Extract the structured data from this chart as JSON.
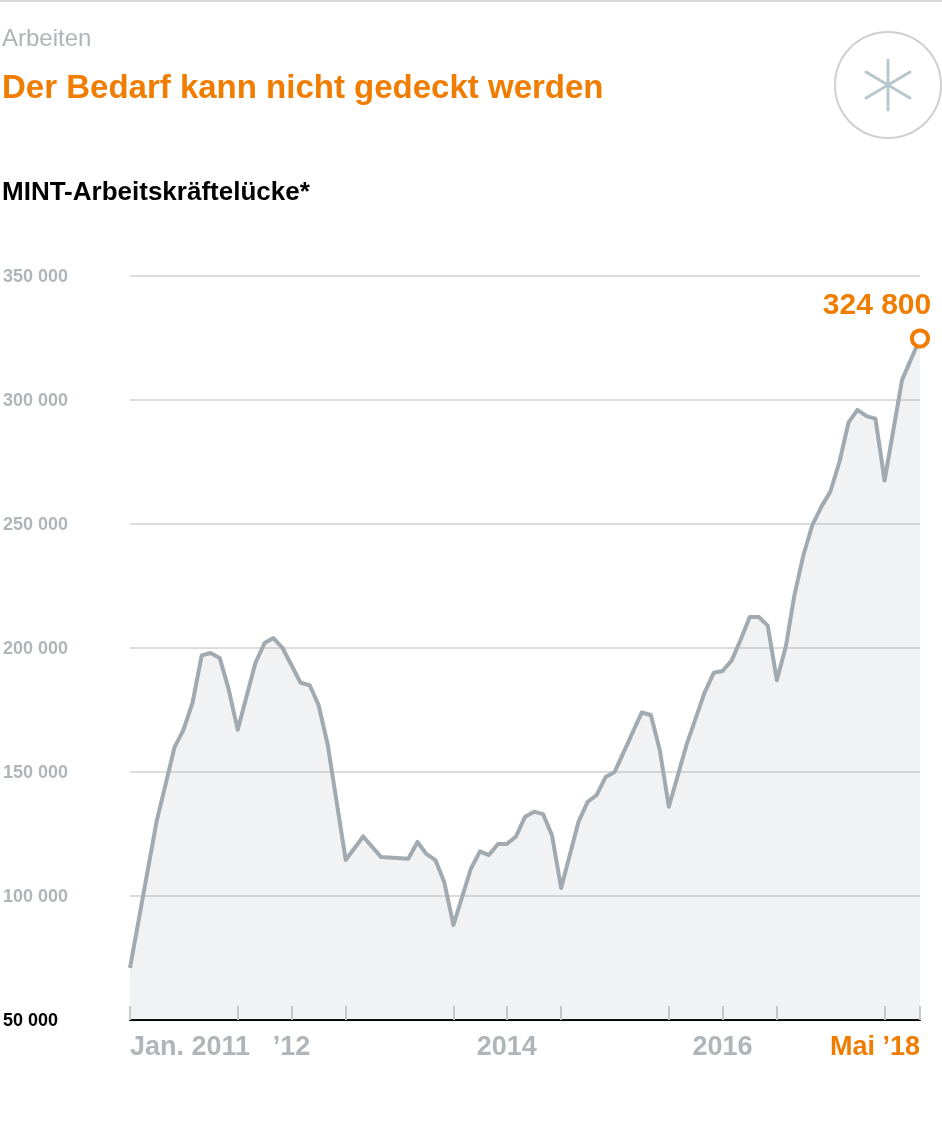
{
  "chart_data": {
    "type": "area",
    "annotations": [
      "Arbeiten",
      {
        "text": "324 800",
        "x": "2018-05",
        "y": 324800
      }
    ],
    "title": "Der Bedarf kann nicht gedeckt werden",
    "ylabel": "MINT-Arbeitskräftelücke*",
    "series": [
      {
        "color": "#a0aab0",
        "x": [
          "2011-01",
          "2011-04",
          "2011-06",
          "2011-07",
          "2011-08",
          "2011-09",
          "2011-10",
          "2011-11",
          "2011-12",
          "2012-01",
          "2012-03",
          "2012-04",
          "2012-05",
          "2012-06",
          "2012-08",
          "2012-09",
          "2012-10",
          "2012-11",
          "2013-01",
          "2013-03",
          "2013-05",
          "2013-08",
          "2013-09",
          "2013-10",
          "2013-11",
          "2013-12",
          "2014-01",
          "2014-03",
          "2014-04",
          "2014-05",
          "2014-06",
          "2014-07",
          "2014-08",
          "2014-09",
          "2014-10",
          "2014-11",
          "2014-12",
          "2015-01",
          "2015-03",
          "2015-04",
          "2015-05",
          "2015-06",
          "2015-07",
          "2015-08",
          "2015-10",
          "2015-11",
          "2015-12",
          "2016-01",
          "2016-03",
          "2016-05",
          "2016-06",
          "2016-07",
          "2016-08",
          "2016-09",
          "2016-10",
          "2016-11",
          "2016-12",
          "2017-01",
          "2017-02",
          "2017-03",
          "2017-04",
          "2017-05",
          "2017-06",
          "2017-07",
          "2017-08",
          "2017-09",
          "2017-10",
          "2017-11",
          "2017-12",
          "2018-01",
          "2018-03",
          "2018-05"
        ],
        "values": [
          71000,
          130000,
          160000,
          167000,
          178000,
          197000,
          198000,
          196000,
          183500,
          167000,
          194000,
          202000,
          204000,
          200000,
          186000,
          185000,
          177000,
          161000,
          114500,
          124000,
          115700,
          115000,
          121800,
          117000,
          114500,
          105500,
          88300,
          111000,
          118000,
          116500,
          121000,
          121000,
          124000,
          132000,
          134000,
          133000,
          124500,
          103200,
          130000,
          138000,
          140700,
          148000,
          150000,
          158000,
          174000,
          173000,
          159000,
          136000,
          161000,
          182000,
          190000,
          190700,
          195000,
          203500,
          212500,
          212500,
          209000,
          187000,
          201000,
          221000,
          237500,
          249500,
          257000,
          263000,
          275000,
          291000,
          296000,
          293500,
          292500,
          267500,
          308000,
          324800
        ]
      }
    ],
    "xlim": [
      "2011-01",
      "2018-05"
    ],
    "xticks": [
      {
        "value": "2011-01",
        "label": "Jan. 2011"
      },
      {
        "value": "2012-01",
        "label": null
      },
      {
        "value": "2012-07",
        "label": "’12"
      },
      {
        "value": "2013-01",
        "label": null
      },
      {
        "value": "2014-01",
        "label": null
      },
      {
        "value": "2014-07",
        "label": "2014"
      },
      {
        "value": "2015-01",
        "label": null
      },
      {
        "value": "2016-01",
        "label": null
      },
      {
        "value": "2016-07",
        "label": "2016"
      },
      {
        "value": "2017-01",
        "label": null
      },
      {
        "value": "2018-01",
        "label": null
      },
      {
        "value": "2018-05",
        "label": "Mai ’18"
      }
    ],
    "ylim": [
      50000,
      350000
    ],
    "yticks": [
      {
        "value": 50000,
        "label": "50 000"
      },
      {
        "value": 100000,
        "label": "100 000"
      },
      {
        "value": 150000,
        "label": "150 000"
      },
      {
        "value": 200000,
        "label": "200 000"
      },
      {
        "value": 250000,
        "label": "250 000"
      },
      {
        "value": 300000,
        "label": "300 000"
      },
      {
        "value": 350000,
        "label": "350 000"
      }
    ],
    "grid": "y",
    "marker": "none"
  }
}
